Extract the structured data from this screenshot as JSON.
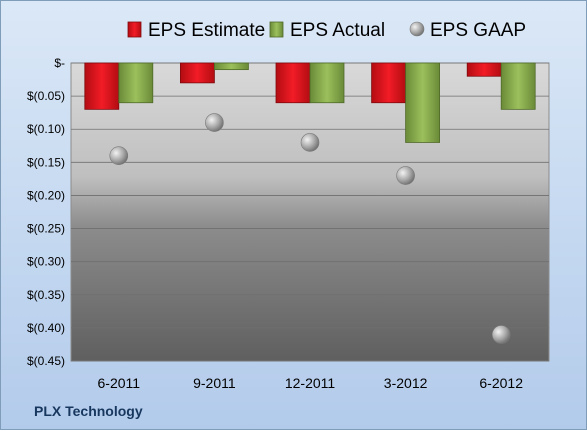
{
  "chart_data": {
    "type": "bar",
    "categories": [
      "6-2011",
      "9-2011",
      "12-2011",
      "3-2012",
      "6-2012"
    ],
    "series": [
      {
        "name": "EPS Estimate",
        "kind": "bar",
        "color": "#e0141e",
        "values": [
          -0.07,
          -0.03,
          -0.06,
          -0.06,
          -0.02
        ]
      },
      {
        "name": "EPS Actual",
        "kind": "bar",
        "color": "#8cb050",
        "values": [
          -0.06,
          -0.01,
          -0.06,
          -0.12,
          -0.07
        ]
      },
      {
        "name": "EPS GAAP",
        "kind": "marker",
        "color": "#a6a6a6",
        "values": [
          -0.14,
          -0.09,
          -0.12,
          -0.17,
          -0.41
        ]
      }
    ],
    "ylim": [
      -0.45,
      0
    ],
    "yticks": [
      "$-",
      "$(0.05)",
      "$(0.10)",
      "$(0.15)",
      "$(0.20)",
      "$(0.25)",
      "$(0.30)",
      "$(0.35)",
      "$(0.40)",
      "$(0.45)"
    ],
    "grid": true,
    "legend_position": "top"
  },
  "footer": {
    "company": "PLX Technology"
  }
}
